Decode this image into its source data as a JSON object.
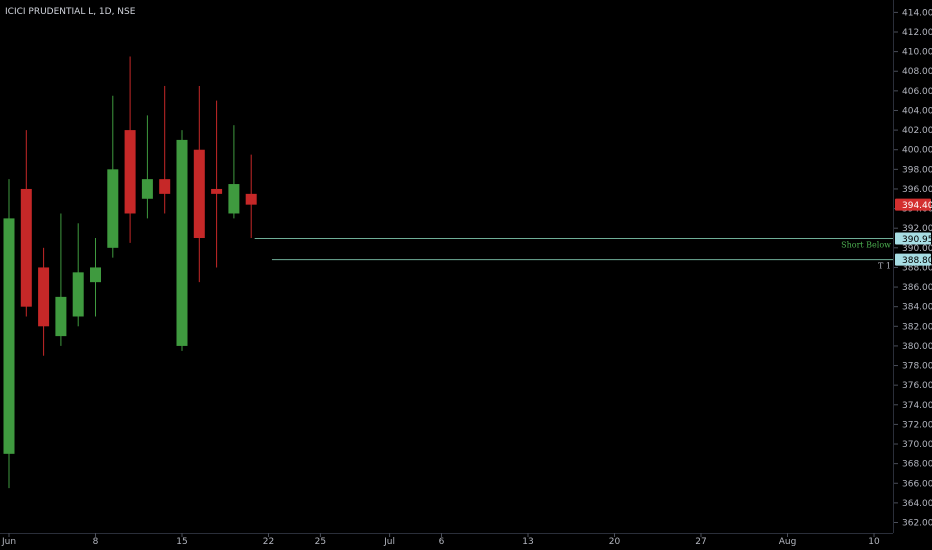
{
  "header": {
    "symbol": "ICICI PRUDENTIAL L, 1D, NSE"
  },
  "colors": {
    "background": "#000000",
    "up": "#3f9a3f",
    "down": "#c62828",
    "level_line": "#6fae98",
    "axis_text": "#b2b5be",
    "price_tag": "#d32f2f",
    "level_tag": "#a7dde3"
  },
  "chart_data": {
    "type": "candlestick",
    "ylim": [
      361,
      415
    ],
    "y_ticks": [
      "414.00",
      "412.00",
      "410.00",
      "408.00",
      "406.00",
      "404.00",
      "402.00",
      "400.00",
      "398.00",
      "396.00",
      "394.00",
      "392.00",
      "390.00",
      "388.00",
      "386.00",
      "384.00",
      "382.00",
      "380.00",
      "378.00",
      "376.00",
      "374.00",
      "372.00",
      "370.00",
      "368.00",
      "366.00",
      "364.00",
      "362.00"
    ],
    "x_labels": [
      {
        "label": "Jun",
        "index": 0
      },
      {
        "label": "8",
        "index": 5
      },
      {
        "label": "15",
        "index": 10
      },
      {
        "label": "22",
        "index": 15
      },
      {
        "label": "25",
        "index": 18
      },
      {
        "label": "Jul",
        "index": 22
      },
      {
        "label": "6",
        "index": 25
      },
      {
        "label": "13",
        "index": 30
      },
      {
        "label": "20",
        "index": 35
      },
      {
        "label": "27",
        "index": 40
      },
      {
        "label": "Aug",
        "index": 45
      },
      {
        "label": "10",
        "index": 50
      }
    ],
    "candles": [
      {
        "o": 369.0,
        "h": 397.0,
        "l": 365.5,
        "c": 393.0
      },
      {
        "o": 396.0,
        "h": 402.0,
        "l": 383.0,
        "c": 384.0
      },
      {
        "o": 388.0,
        "h": 390.0,
        "l": 379.0,
        "c": 382.0
      },
      {
        "o": 381.0,
        "h": 393.5,
        "l": 380.0,
        "c": 385.0
      },
      {
        "o": 383.0,
        "h": 392.5,
        "l": 382.0,
        "c": 387.5
      },
      {
        "o": 386.5,
        "h": 391.0,
        "l": 383.0,
        "c": 388.0
      },
      {
        "o": 390.0,
        "h": 405.5,
        "l": 389.0,
        "c": 398.0
      },
      {
        "o": 402.0,
        "h": 409.5,
        "l": 390.5,
        "c": 393.5
      },
      {
        "o": 395.0,
        "h": 403.5,
        "l": 393.0,
        "c": 397.0
      },
      {
        "o": 397.0,
        "h": 406.5,
        "l": 393.5,
        "c": 395.5
      },
      {
        "o": 380.0,
        "h": 402.0,
        "l": 379.5,
        "c": 401.0
      },
      {
        "o": 400.0,
        "h": 406.5,
        "l": 386.5,
        "c": 391.0
      },
      {
        "o": 396.0,
        "h": 405.0,
        "l": 388.0,
        "c": 395.5
      },
      {
        "o": 393.5,
        "h": 402.5,
        "l": 393.0,
        "c": 396.5
      },
      {
        "o": 395.5,
        "h": 399.5,
        "l": 391.0,
        "c": 394.4
      }
    ],
    "last_price": {
      "value": 394.4,
      "label": "394.40"
    },
    "levels": [
      {
        "value": 390.95,
        "label": "390.95",
        "annotation": "Short Below",
        "start_index": 14.2
      },
      {
        "value": 388.8,
        "label": "388.80",
        "annotation": "T 1",
        "start_index": 15.2
      }
    ]
  }
}
